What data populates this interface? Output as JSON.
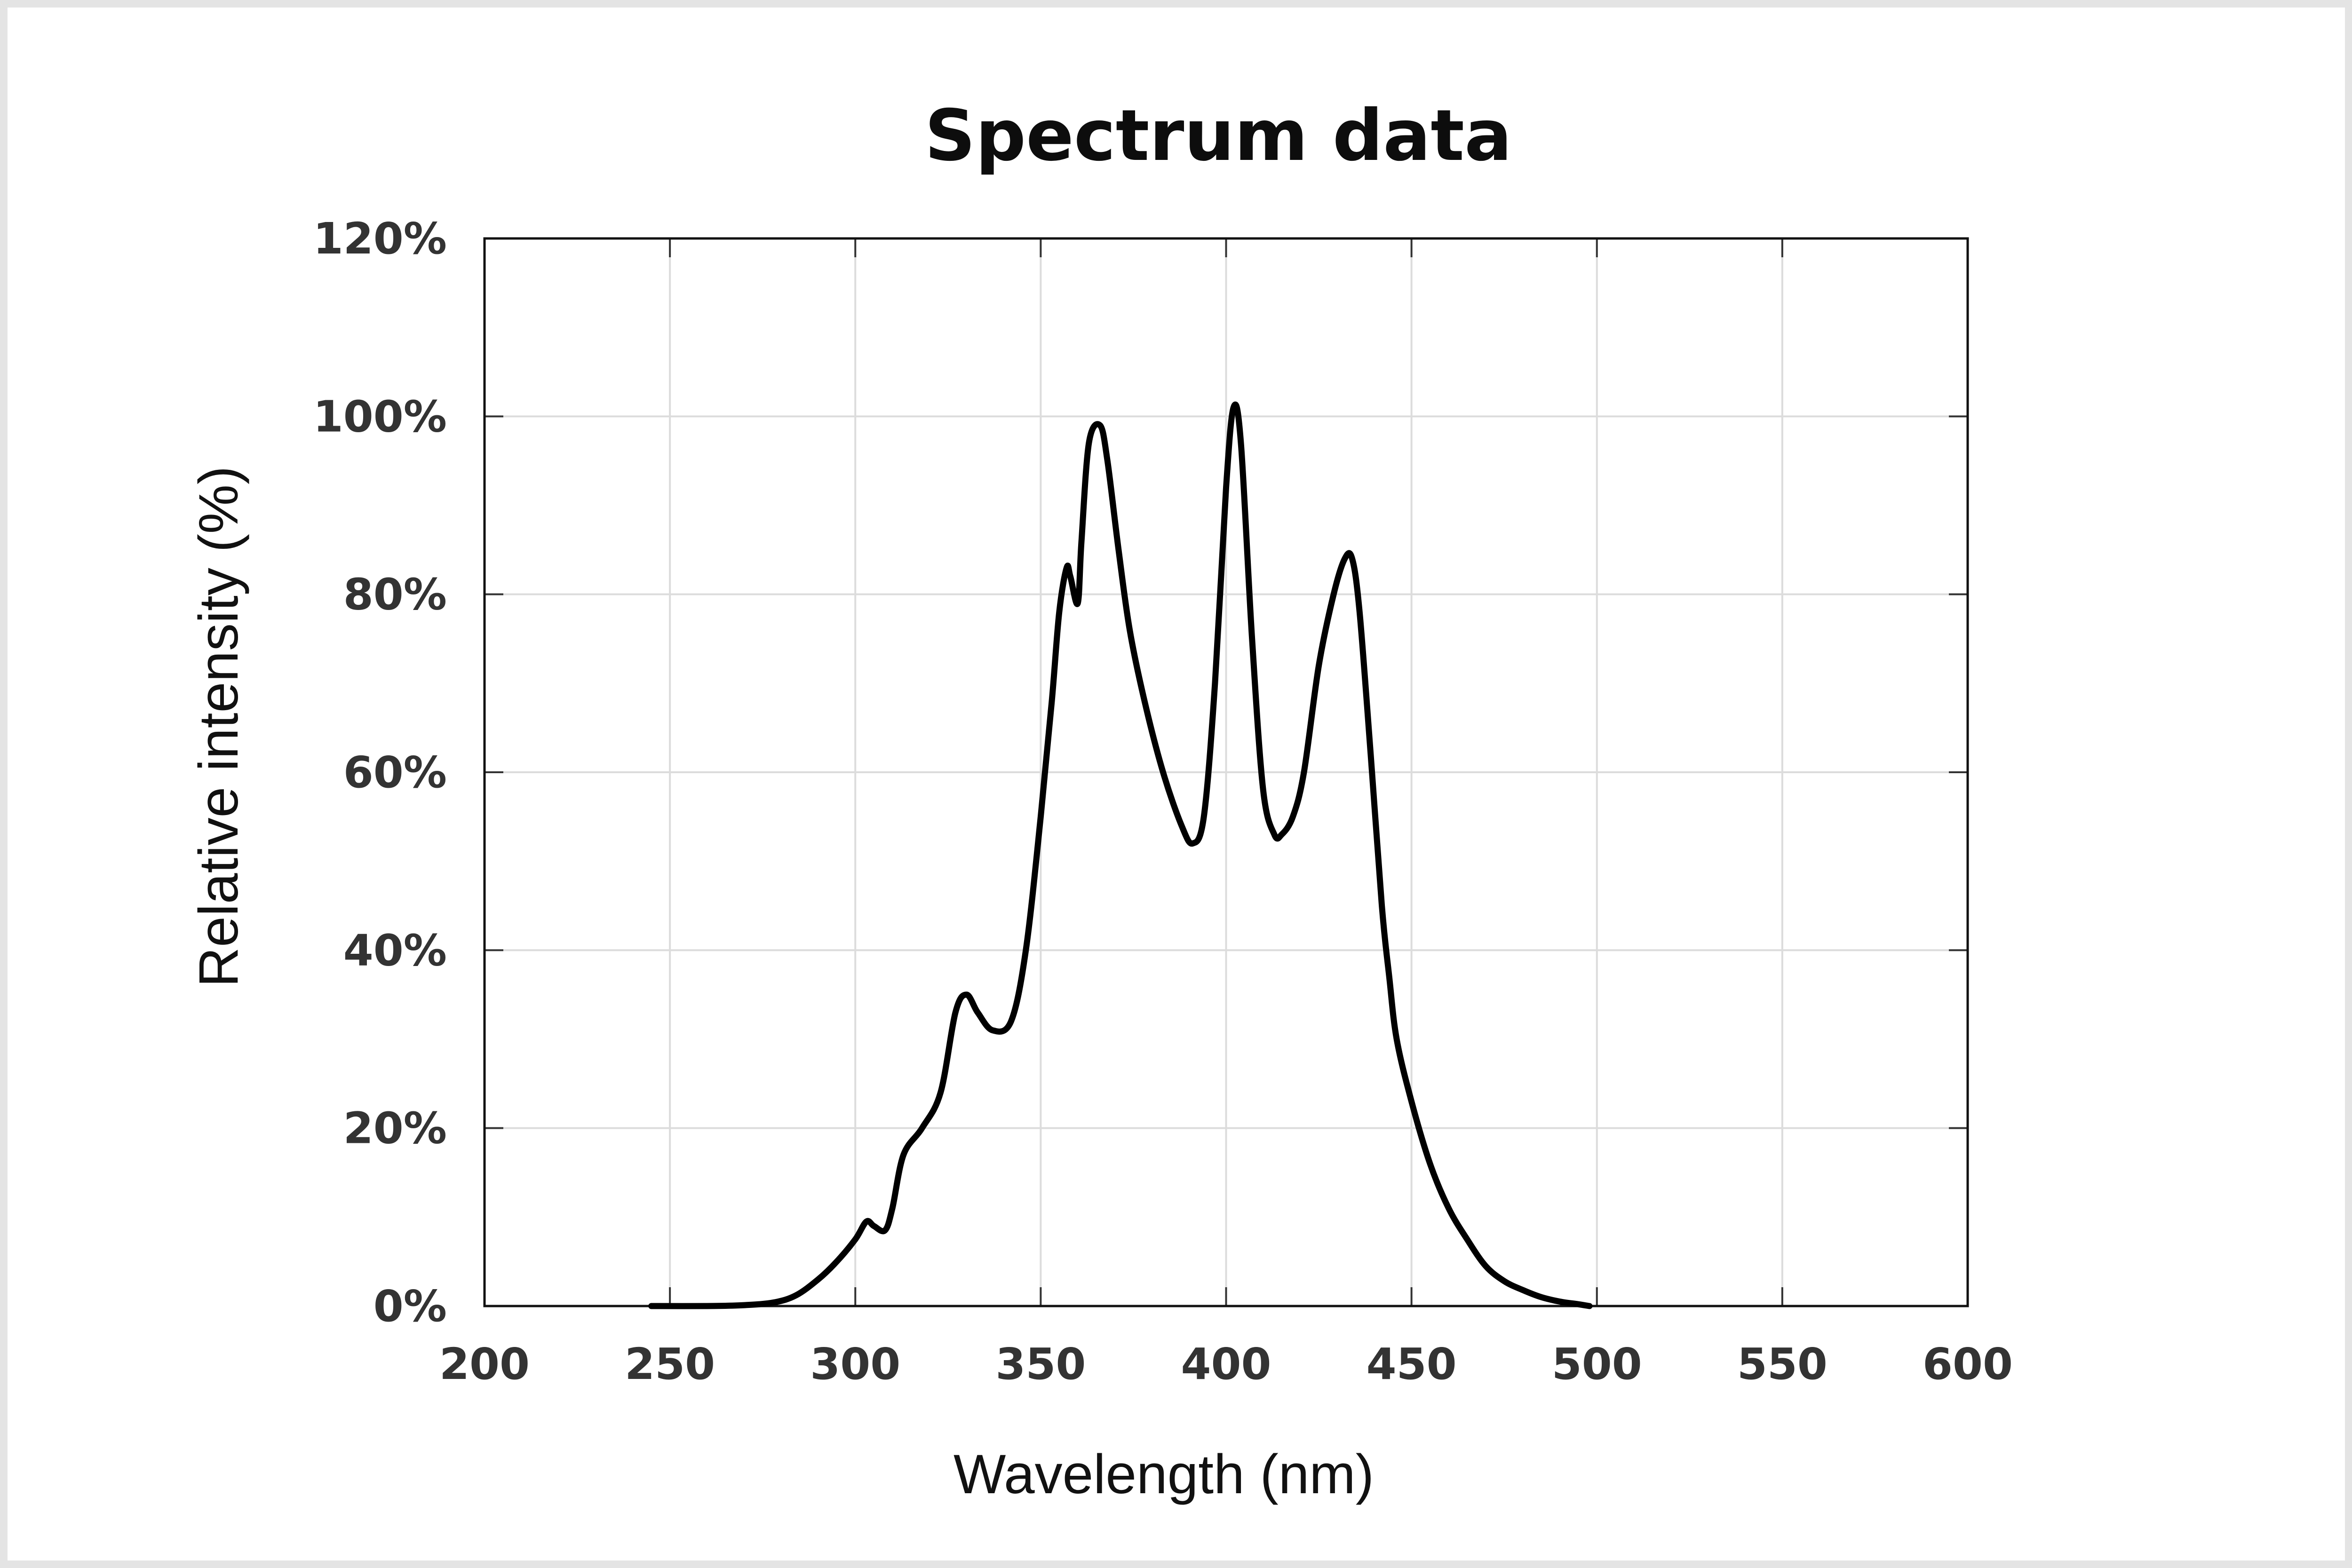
{
  "chart_data": {
    "type": "line",
    "title": "Spectrum data",
    "xlabel": "Wavelength (nm)",
    "ylabel": "Relative intensity (%)",
    "xlim": [
      200,
      600
    ],
    "ylim": [
      0,
      120
    ],
    "x_ticks": [
      200,
      250,
      300,
      350,
      400,
      450,
      500,
      550,
      600
    ],
    "y_ticks": [
      0,
      20,
      40,
      60,
      80,
      100,
      120
    ],
    "x_tick_labels": [
      "200",
      "250",
      "300",
      "350",
      "400",
      "450",
      "500",
      "550",
      "600"
    ],
    "y_tick_labels": [
      "0%",
      "20%",
      "40%",
      "60%",
      "80%",
      "100%",
      "120%"
    ],
    "grid": true,
    "line_color": "#000000",
    "grid_color": "#dcdcdc",
    "series": [
      {
        "x": [
          245,
          260,
          270,
          278,
          284,
          290,
          295,
          300,
          303,
          305,
          308,
          310,
          313,
          318,
          323,
          327,
          330,
          333,
          337,
          342,
          346,
          350,
          353,
          355,
          357,
          358,
          360,
          361,
          363,
          366,
          368,
          371,
          374,
          378,
          383,
          388,
          391,
          394,
          397,
          400,
          402,
          404,
          407,
          410,
          413,
          415,
          418,
          421,
          425,
          429,
          432,
          434,
          436,
          439,
          442,
          444,
          446,
          450,
          455,
          460,
          465,
          470,
          475,
          480,
          485,
          490,
          495,
          498
        ],
        "y": [
          0,
          0,
          0.1,
          0.4,
          1.2,
          3,
          5,
          7.5,
          9.5,
          9,
          8.5,
          11,
          17,
          20,
          24,
          33,
          35,
          33,
          31,
          32,
          40,
          55,
          68,
          78,
          83,
          82,
          79,
          86,
          97,
          99,
          95,
          85,
          76,
          68,
          60,
          54,
          52,
          55,
          70,
          92,
          101,
          97,
          75,
          58,
          53,
          53,
          55,
          60,
          72,
          80,
          84,
          84,
          78,
          62,
          45,
          37,
          30,
          23,
          16,
          11,
          7.5,
          4.5,
          2.8,
          1.8,
          1,
          0.5,
          0.2,
          0
        ]
      }
    ]
  }
}
